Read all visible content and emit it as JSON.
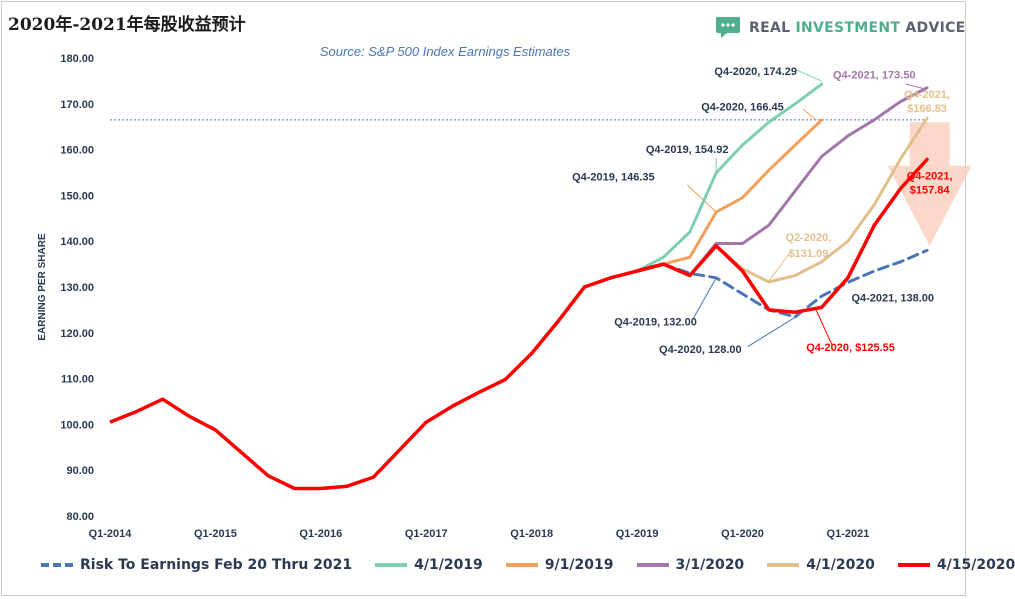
{
  "title": "2020年-2021年每股收益预计",
  "brand": {
    "part1": "REAL ",
    "part2": "INVESTMENT ",
    "part3": "ADVICE",
    "icon": "chat-bubble-icon",
    "color": "#4fae8f"
  },
  "chart_data": {
    "type": "line",
    "subtitle": "Source: S&P 500 Index Earnings Estimates",
    "ylabel": "EARNING PER SHARE",
    "ylim": [
      80,
      180
    ],
    "yticks": [
      80,
      90,
      100,
      110,
      120,
      130,
      140,
      150,
      160,
      170,
      180
    ],
    "ytick_labels": [
      "80.00",
      "90.00",
      "100.00",
      "110.00",
      "120.00",
      "130.00",
      "140.00",
      "150.00",
      "160.00",
      "170.00",
      "180.00"
    ],
    "xlim": [
      0,
      31
    ],
    "xticks": [
      0,
      4,
      8,
      12,
      16,
      20,
      24,
      28
    ],
    "xtick_labels": [
      "Q1-2014",
      "Q1-2015",
      "Q1-2016",
      "Q1-2017",
      "Q1-2018",
      "Q1-2019",
      "Q1-2020",
      "Q1-2021"
    ],
    "reference_line": 166.5,
    "grid": false,
    "legend_position": "bottom",
    "base": {
      "x": [
        0,
        1,
        2,
        3,
        4,
        5,
        6,
        7,
        8,
        9,
        10,
        11,
        12,
        13,
        14,
        15,
        16,
        17,
        18,
        19,
        20,
        21
      ],
      "y": [
        100.5,
        102.8,
        105.5,
        101.8,
        98.8,
        93.8,
        88.8,
        86.0,
        86.0,
        86.5,
        88.5,
        94.5,
        100.5,
        104.0,
        107.0,
        109.8,
        115.5,
        122.5,
        130.0,
        132.0,
        133.5,
        135.0
      ]
    },
    "series": [
      {
        "name": "Risk To Earnings Feb 20 Thru 2021",
        "color": "#4a76b8",
        "dashed": true,
        "x": [
          21,
          22,
          23,
          24,
          25,
          26,
          27,
          28,
          29,
          30,
          31
        ],
        "y": [
          135.0,
          133.0,
          132.0,
          128.5,
          125.0,
          123.5,
          128.0,
          131.0,
          133.5,
          135.5,
          138.0
        ]
      },
      {
        "name": "4/1/2019",
        "color": "#7ecfaf",
        "x": [
          20,
          21,
          22,
          23,
          24,
          25,
          26,
          27
        ],
        "y": [
          133.5,
          136.5,
          142.0,
          154.92,
          161.0,
          166.0,
          170.0,
          174.29
        ]
      },
      {
        "name": "9/1/2019",
        "color": "#f2a05c",
        "x": [
          21,
          22,
          23,
          24,
          25,
          26,
          27
        ],
        "y": [
          135.0,
          136.5,
          146.35,
          149.5,
          155.5,
          161.0,
          166.45
        ]
      },
      {
        "name": "3/1/2020",
        "color": "#a277a9",
        "x": [
          22,
          23,
          24,
          25,
          26,
          27,
          28,
          29,
          30,
          31
        ],
        "y": [
          132.5,
          139.5,
          139.5,
          143.5,
          151.0,
          158.5,
          163.0,
          166.5,
          170.5,
          173.5
        ]
      },
      {
        "name": "4/1/2020",
        "color": "#e2c08e",
        "x": [
          22,
          23,
          24,
          25,
          26,
          27,
          28,
          29,
          30,
          31
        ],
        "y": [
          132.5,
          139.0,
          134.0,
          131.09,
          132.5,
          135.5,
          140.0,
          148.0,
          158.0,
          166.83
        ]
      },
      {
        "name": "4/15/2020",
        "color": "#ff0000",
        "thick": true,
        "x": [
          20,
          21,
          22,
          23,
          24,
          25,
          26,
          27,
          28,
          29,
          30,
          31
        ],
        "y": [
          133.5,
          135.0,
          132.5,
          139.0,
          133.5,
          125.0,
          124.5,
          125.55,
          132.0,
          143.5,
          151.5,
          157.84
        ]
      }
    ],
    "annotations": [
      {
        "text": "Q4-2020,  174.29",
        "color": "#2a3a52",
        "x": 24.5,
        "y": 176.3
      },
      {
        "text": "Q4-2020,  166.45",
        "color": "#2a3a52",
        "x": 24.0,
        "y": 168.5
      },
      {
        "text": "Q4-2019,  154.92",
        "color": "#2a3a52",
        "x": 21.9,
        "y": 159.3
      },
      {
        "text": "Q4-2019,  146.35",
        "color": "#2a3a52",
        "x": 19.1,
        "y": 153.3
      },
      {
        "text": "Q4-2021,  173.50",
        "color": "#a277a9",
        "x": 29.0,
        "y": 175.5
      },
      {
        "text": "Q4-2021,",
        "color": "#e2c08e",
        "x": 31.0,
        "y": 171.3
      },
      {
        "text": "$166.83",
        "color": "#e2c08e",
        "x": 31.0,
        "y": 168.2
      },
      {
        "text": "Q2-2020,",
        "color": "#e2c08e",
        "x": 26.5,
        "y": 140.0
      },
      {
        "text": "$131.09",
        "color": "#e2c08e",
        "x": 26.5,
        "y": 136.6
      },
      {
        "text": "Q4-2021,",
        "color": "#ff0000",
        "x": 31.1,
        "y": 153.5
      },
      {
        "text": "$157.84",
        "color": "#ff0000",
        "x": 31.1,
        "y": 150.4
      },
      {
        "text": "Q4-2021,  138.00",
        "color": "#2a3a52",
        "x": 29.7,
        "y": 126.8
      },
      {
        "text": "Q4-2019,  132.00",
        "color": "#2a3a52",
        "x": 20.7,
        "y": 121.6
      },
      {
        "text": "Q4-2020,  128.00",
        "color": "#2a3a52",
        "x": 22.4,
        "y": 115.6
      },
      {
        "text": "Q4-2020, $125.55",
        "color": "#ff0000",
        "x": 28.1,
        "y": 116.0
      }
    ],
    "callouts": [
      {
        "from": [
          27.0,
          175.0
        ],
        "to": [
          26.0,
          177.5
        ],
        "color": "#7ecfaf"
      },
      {
        "from": [
          26.8,
          166.45
        ],
        "to": [
          26.3,
          168.8
        ],
        "color": "#f2a05c"
      },
      {
        "from": [
          23.0,
          154.92
        ],
        "to": [
          23.0,
          158.2
        ],
        "color": "#7ecfaf"
      },
      {
        "from": [
          23.0,
          146.35
        ],
        "to": [
          21.9,
          152.3
        ],
        "color": "#f2a05c"
      },
      {
        "from": [
          30.95,
          173.2
        ],
        "to": [
          30.2,
          174.3
        ],
        "color": "#a277a9"
      },
      {
        "from": [
          25.0,
          131.3
        ],
        "to": [
          25.8,
          137.5
        ],
        "color": "#e2c08e"
      },
      {
        "from": [
          23.0,
          132.0
        ],
        "to": [
          22.1,
          122.8
        ],
        "color": "#4a76b8"
      },
      {
        "from": [
          26.0,
          123.4
        ],
        "to": [
          24.2,
          117.0
        ],
        "color": "#4a76b8"
      },
      {
        "from": [
          26.8,
          124.9
        ],
        "to": [
          27.4,
          117.3
        ],
        "color": "#ff0000"
      }
    ],
    "arrow": {
      "color": "#fbd1c2",
      "x_center": 31.1,
      "y_top": 166.0,
      "y_bottom": 139.0
    }
  }
}
